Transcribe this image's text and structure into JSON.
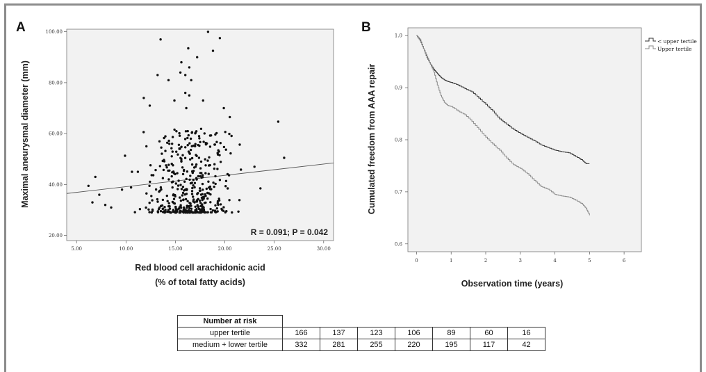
{
  "panels": {
    "a_letter": "A",
    "b_letter": "B"
  },
  "chart_data": [
    {
      "type": "scatter",
      "panel": "A",
      "xlabel_line1": "Red blood cell arachidonic acid",
      "xlabel_line2": "(% of total fatty acids)",
      "ylabel": "Maximal aneurysmal diameter (mm)",
      "xlim": [
        4,
        31
      ],
      "ylim": [
        18,
        101
      ],
      "xticks": [
        "5.00",
        "10.00",
        "15.00",
        "20.00",
        "25.00",
        "30.00"
      ],
      "yticks": [
        "20.00",
        "40.00",
        "60.00",
        "80.00",
        "100.00"
      ],
      "annotation": "R = 0.091; P = 0.042",
      "fit_line": {
        "x": [
          4,
          31
        ],
        "y": [
          36.5,
          48.5
        ]
      },
      "outliers": [
        {
          "x": 18.3,
          "y": 100
        },
        {
          "x": 19.5,
          "y": 97.5
        },
        {
          "x": 13.5,
          "y": 97
        },
        {
          "x": 16.3,
          "y": 93.5
        },
        {
          "x": 18.8,
          "y": 92.5
        },
        {
          "x": 17.2,
          "y": 90
        },
        {
          "x": 15.6,
          "y": 88
        },
        {
          "x": 16.4,
          "y": 86
        },
        {
          "x": 15.5,
          "y": 84
        },
        {
          "x": 13.2,
          "y": 83
        },
        {
          "x": 16,
          "y": 83
        },
        {
          "x": 14.3,
          "y": 81
        },
        {
          "x": 16.6,
          "y": 81
        },
        {
          "x": 16,
          "y": 76
        },
        {
          "x": 11.8,
          "y": 74
        },
        {
          "x": 16.4,
          "y": 75
        },
        {
          "x": 14.9,
          "y": 73
        },
        {
          "x": 17.8,
          "y": 73
        },
        {
          "x": 12.4,
          "y": 71
        },
        {
          "x": 19.9,
          "y": 70
        },
        {
          "x": 16.1,
          "y": 70
        },
        {
          "x": 20.5,
          "y": 66.5
        },
        {
          "x": 25.4,
          "y": 64.7
        },
        {
          "x": 26,
          "y": 50.5
        },
        {
          "x": 23,
          "y": 47
        },
        {
          "x": 23.6,
          "y": 38.5
        },
        {
          "x": 6.2,
          "y": 39.5
        },
        {
          "x": 6.9,
          "y": 43
        },
        {
          "x": 6.6,
          "y": 33
        },
        {
          "x": 7.3,
          "y": 36
        },
        {
          "x": 7.9,
          "y": 32
        },
        {
          "x": 8.5,
          "y": 31
        },
        {
          "x": 9.9,
          "y": 51.3
        },
        {
          "x": 10.6,
          "y": 45
        },
        {
          "x": 11.2,
          "y": 45
        },
        {
          "x": 9.6,
          "y": 38
        }
      ],
      "cluster": {
        "n": 440,
        "x_mean": 16.3,
        "x_sd": 1.9,
        "y_min": 29,
        "y_max": 62,
        "seed": 7
      }
    },
    {
      "type": "line",
      "panel": "B",
      "xlabel": "Observation time (years)",
      "ylabel": "Cumulated freedom from AAA repair",
      "xlim": [
        -0.25,
        6.5
      ],
      "ylim": [
        0.585,
        1.015
      ],
      "xticks": [
        "0",
        "1",
        "2",
        "3",
        "4",
        "5",
        "6"
      ],
      "yticks": [
        "0.6",
        "0.7",
        "0.8",
        "0.9",
        "1.0"
      ],
      "series": [
        {
          "name": "< upper tertile",
          "color": "#333333",
          "x": [
            0,
            0.1,
            0.2,
            0.3,
            0.4,
            0.5,
            0.6,
            0.7,
            0.8,
            0.9,
            1.0,
            1.2,
            1.4,
            1.6,
            1.8,
            2.0,
            2.2,
            2.4,
            2.6,
            2.8,
            3.0,
            3.2,
            3.4,
            3.6,
            3.8,
            4.0,
            4.2,
            4.4,
            4.6,
            4.8,
            4.9,
            5.0
          ],
          "y": [
            1.0,
            0.992,
            0.975,
            0.958,
            0.945,
            0.935,
            0.927,
            0.92,
            0.915,
            0.912,
            0.91,
            0.905,
            0.898,
            0.892,
            0.88,
            0.868,
            0.855,
            0.84,
            0.83,
            0.82,
            0.812,
            0.805,
            0.798,
            0.79,
            0.785,
            0.78,
            0.777,
            0.775,
            0.768,
            0.76,
            0.754,
            0.754
          ]
        },
        {
          "name": "Upper tertile",
          "color": "#8a8a8a",
          "x": [
            0,
            0.1,
            0.2,
            0.3,
            0.4,
            0.5,
            0.6,
            0.7,
            0.8,
            0.9,
            1.0,
            1.2,
            1.4,
            1.6,
            1.8,
            2.0,
            2.2,
            2.4,
            2.6,
            2.8,
            3.0,
            3.2,
            3.4,
            3.6,
            3.8,
            4.0,
            4.2,
            4.4,
            4.6,
            4.8,
            4.9,
            5.0
          ],
          "y": [
            1.0,
            0.99,
            0.975,
            0.96,
            0.945,
            0.93,
            0.905,
            0.885,
            0.872,
            0.866,
            0.864,
            0.855,
            0.848,
            0.835,
            0.82,
            0.805,
            0.792,
            0.78,
            0.765,
            0.752,
            0.745,
            0.735,
            0.722,
            0.71,
            0.705,
            0.695,
            0.692,
            0.69,
            0.684,
            0.676,
            0.668,
            0.655
          ]
        }
      ]
    }
  ],
  "risk_table": {
    "header": "Number at risk",
    "rows": [
      {
        "label": "upper tertile",
        "values": [
          "166",
          "137",
          "123",
          "106",
          "89",
          "60",
          "16"
        ]
      },
      {
        "label": "medium + lower tertile",
        "values": [
          "332",
          "281",
          "255",
          "220",
          "195",
          "117",
          "42"
        ]
      }
    ]
  }
}
